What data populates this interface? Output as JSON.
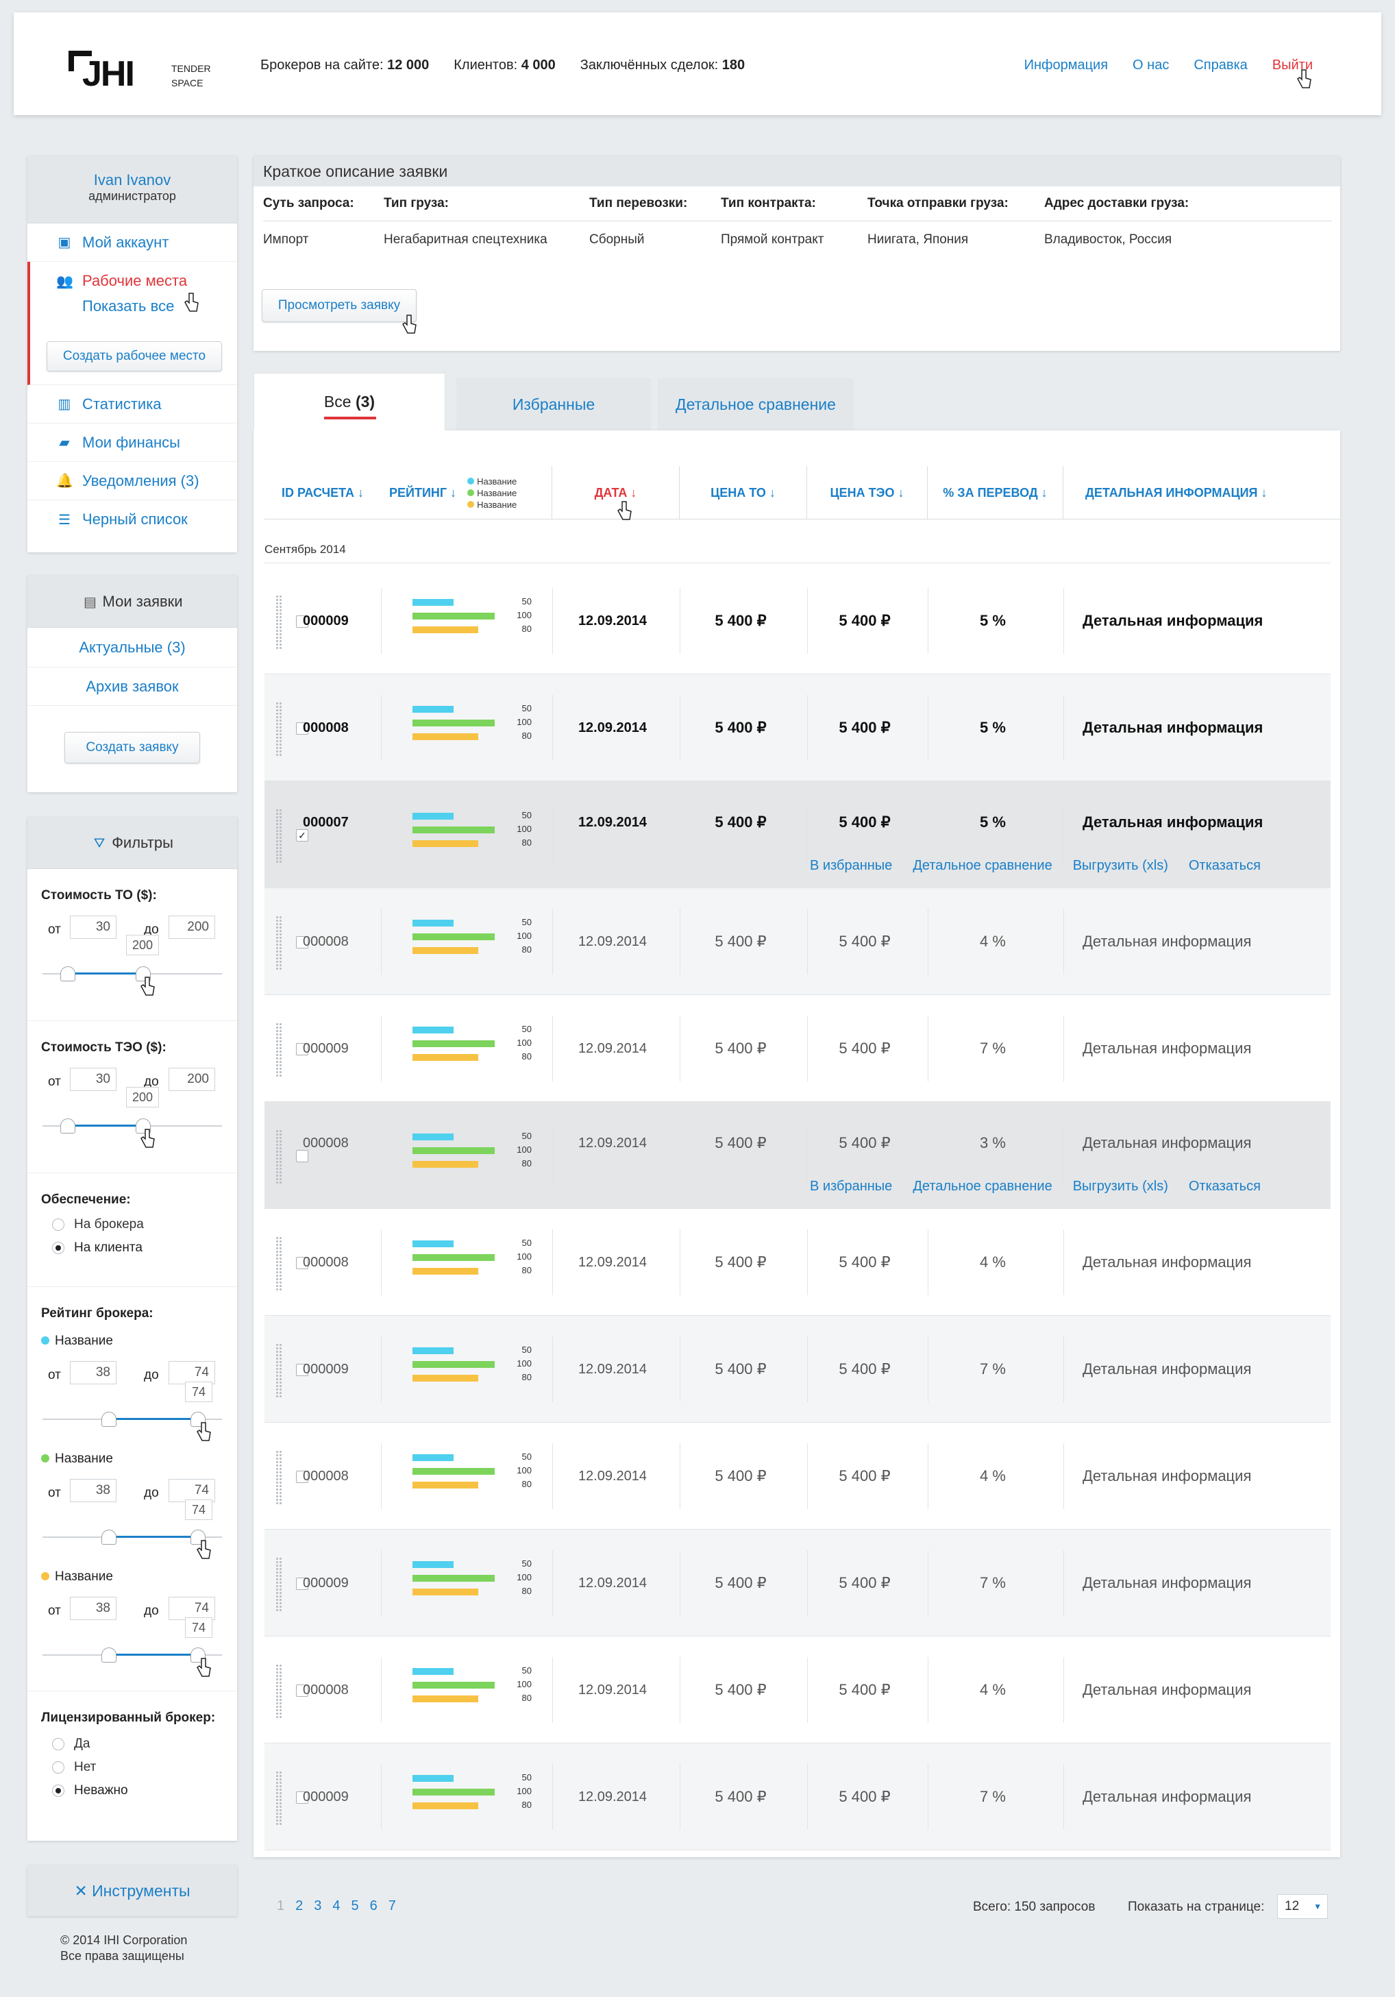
{
  "header": {
    "logo_mark": "JHI",
    "logo_sub_1": "TENDER",
    "logo_sub_2": "SPACE",
    "stats": [
      {
        "label": "Брокеров на сайте:",
        "value": "12 000"
      },
      {
        "label": "Клиентов:",
        "value": "4 000"
      },
      {
        "label": "Заключённых сделок:",
        "value": "180"
      }
    ],
    "nav": [
      "Информация",
      "О нас",
      "Справка",
      "Выйти"
    ]
  },
  "user": {
    "name": "Ivan Ivanov",
    "role": "администратор"
  },
  "sidebar": {
    "account": "Мой аккаунт",
    "workplaces": "Рабочие места",
    "show_all": "Показать все",
    "create_workplace": "Создать рабочее место",
    "statistics": "Статистика",
    "finances": "Мои финансы",
    "notifications": "Уведомления (3)",
    "blacklist": "Черный список"
  },
  "requests": {
    "title": "Мои заявки",
    "current": "Актуальные (3)",
    "archive": "Архив заявок",
    "create": "Создать заявку"
  },
  "filters": {
    "title": "Фильтры",
    "to_cost": {
      "label": "Стоимость ТО ($):",
      "from_label": "от",
      "to_label": "до",
      "from": "30",
      "to": "200",
      "tip": "200"
    },
    "teo_cost": {
      "label": "Стоимость ТЭО ($):",
      "from_label": "от",
      "to_label": "до",
      "from": "30",
      "to": "200",
      "tip": "200"
    },
    "security": {
      "label": "Обеспечение:",
      "options": [
        "На брокера",
        "На клиента"
      ],
      "selected": 1
    },
    "rating": {
      "label": "Рейтинг брокера:",
      "items": [
        {
          "name": "Название",
          "color": "#4fd0ee",
          "from": "38",
          "to": "74",
          "tip": "74"
        },
        {
          "name": "Название",
          "color": "#7dd45c",
          "from": "38",
          "to": "74",
          "tip": "74"
        },
        {
          "name": "Название",
          "color": "#f7c244",
          "from": "38",
          "to": "74",
          "tip": "74"
        }
      ],
      "from_label": "от",
      "to_label": "до"
    },
    "licensed": {
      "label": "Лицензированный брокер:",
      "options": [
        "Да",
        "Нет",
        "Неважно"
      ],
      "selected": 2
    }
  },
  "tools": {
    "label": "Инструменты"
  },
  "footer": {
    "line1": "© 2014  IHI Corporation",
    "line2": "Все права защищены"
  },
  "desc": {
    "title": "Краткое описание заявки",
    "headers": [
      "Суть запроса:",
      "Тип груза:",
      "Тип перевозки:",
      "Тип контракта:",
      "Точка отправки груза:",
      "Адрес доставки груза:"
    ],
    "values": [
      "Импорт",
      "Негабаритная спецтехника",
      "Сборный",
      "Прямой контракт",
      "Ниигата, Япония",
      "Владивосток, Россия"
    ],
    "view_button": "Просмотреть заявку"
  },
  "tabs": {
    "all": "Все",
    "all_count": "(3)",
    "favorites": "Избранные",
    "compare": "Детальное сравнение"
  },
  "columns": {
    "id": "ID РАСЧЕТА ↓",
    "rating": "РЕЙТИНГ ↓",
    "legend": [
      {
        "name": "Название",
        "color": "#4fd0ee"
      },
      {
        "name": "Название",
        "color": "#7dd45c"
      },
      {
        "name": "Название",
        "color": "#f7c244"
      }
    ],
    "date": "ДАТА ↓",
    "to_price": "ЦЕНА ТО ↓",
    "teo_price": "ЦЕНА ТЭО ↓",
    "percent": "% ЗА ПЕРЕВОД ↓",
    "detail": "ДЕТАЛЬНАЯ ИНФОРМАЦИЯ ↓"
  },
  "group_label": "Сентябрь 2014",
  "bar_labels": [
    "50",
    "100",
    "80"
  ],
  "bar_values": [
    50,
    100,
    80
  ],
  "row_actions": [
    "В избранные",
    "Детальное сравнение",
    "Выгрузить (xls)",
    "Отказаться"
  ],
  "rows": [
    {
      "id": "000009",
      "date": "12.09.2014",
      "to": "5 400 ₽",
      "teo": "5 400 ₽",
      "pct": "5 %",
      "detail": "Детальная информация",
      "bold": true,
      "checked": false,
      "style": "white"
    },
    {
      "id": "000008",
      "date": "12.09.2014",
      "to": "5 400 ₽",
      "teo": "5 400 ₽",
      "pct": "5 %",
      "detail": "Детальная информация",
      "bold": true,
      "checked": false,
      "style": "light"
    },
    {
      "id": "000007",
      "date": "12.09.2014",
      "to": "5 400 ₽",
      "teo": "5 400 ₽",
      "pct": "5 %",
      "detail": "Детальная информация",
      "bold": true,
      "checked": true,
      "style": "dark",
      "actions": true
    },
    {
      "id": "000008",
      "date": "12.09.2014",
      "to": "5 400 ₽",
      "teo": "5 400 ₽",
      "pct": "4 %",
      "detail": "Детальная информация",
      "bold": false,
      "checked": false,
      "style": "light"
    },
    {
      "id": "000009",
      "date": "12.09.2014",
      "to": "5 400 ₽",
      "teo": "5 400 ₽",
      "pct": "7 %",
      "detail": "Детальная информация",
      "bold": false,
      "checked": false,
      "style": "white"
    },
    {
      "id": "000008",
      "date": "12.09.2014",
      "to": "5 400 ₽",
      "teo": "5 400 ₽",
      "pct": "3 %",
      "detail": "Детальная информация",
      "bold": false,
      "checked": false,
      "style": "dark",
      "actions": true
    },
    {
      "id": "000008",
      "date": "12.09.2014",
      "to": "5 400 ₽",
      "teo": "5 400 ₽",
      "pct": "4 %",
      "detail": "Детальная информация",
      "bold": false,
      "checked": false,
      "style": "white"
    },
    {
      "id": "000009",
      "date": "12.09.2014",
      "to": "5 400 ₽",
      "teo": "5 400 ₽",
      "pct": "7 %",
      "detail": "Детальная информация",
      "bold": false,
      "checked": false,
      "style": "light"
    },
    {
      "id": "000008",
      "date": "12.09.2014",
      "to": "5 400 ₽",
      "teo": "5 400 ₽",
      "pct": "4 %",
      "detail": "Детальная информация",
      "bold": false,
      "checked": false,
      "style": "white"
    },
    {
      "id": "000009",
      "date": "12.09.2014",
      "to": "5 400 ₽",
      "teo": "5 400 ₽",
      "pct": "7 %",
      "detail": "Детальная информация",
      "bold": false,
      "checked": false,
      "style": "light"
    },
    {
      "id": "000008",
      "date": "12.09.2014",
      "to": "5 400 ₽",
      "teo": "5 400 ₽",
      "pct": "4 %",
      "detail": "Детальная информация",
      "bold": false,
      "checked": false,
      "style": "white"
    },
    {
      "id": "000009",
      "date": "12.09.2014",
      "to": "5 400 ₽",
      "teo": "5 400 ₽",
      "pct": "7 %",
      "detail": "Детальная информация",
      "bold": false,
      "checked": false,
      "style": "light"
    }
  ],
  "pagination": {
    "pages": [
      "1",
      "2",
      "3",
      "4",
      "5",
      "6",
      "7"
    ],
    "total": "Всего: 150 запросов",
    "per_page_label": "Показать на странице:",
    "per_page": "12"
  },
  "colors": {
    "accent": "#1a7fc8",
    "danger": "#e0353a",
    "bar1": "#4fd0ee",
    "bar2": "#7dd45c",
    "bar3": "#f7c244"
  }
}
